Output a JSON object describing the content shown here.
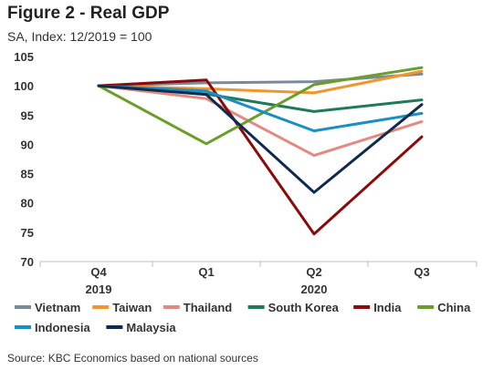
{
  "chart_data": {
    "type": "line",
    "title": "Figure 2 - Real GDP",
    "subtitle": "SA, Index: 12/2019 = 100",
    "categories": [
      {
        "period": "Q4",
        "year": "2019"
      },
      {
        "period": "Q1",
        "year": ""
      },
      {
        "period": "Q2",
        "year": "2020"
      },
      {
        "period": "Q3",
        "year": ""
      }
    ],
    "ylim": [
      70,
      105
    ],
    "yticks": [
      70,
      75,
      80,
      85,
      90,
      95,
      100,
      105
    ],
    "grid": false,
    "legend_position": "bottom",
    "series": [
      {
        "name": "Vietnam",
        "color": "#7a8a99",
        "values": [
          100,
          100.5,
          100.7,
          102
        ]
      },
      {
        "name": "Taiwan",
        "color": "#f0962a",
        "values": [
          100,
          99.5,
          98.8,
          102.5
        ]
      },
      {
        "name": "Thailand",
        "color": "#e38a80",
        "values": [
          100,
          97.8,
          88.1,
          93.9
        ]
      },
      {
        "name": "South Korea",
        "color": "#1f7a5c",
        "values": [
          100,
          98.6,
          95.6,
          97.6
        ]
      },
      {
        "name": "India",
        "color": "#8b0a0a",
        "values": [
          100,
          101,
          74.7,
          91.3
        ]
      },
      {
        "name": "China",
        "color": "#6a9e2a",
        "values": [
          100,
          90.1,
          100.2,
          103.1
        ]
      },
      {
        "name": "Indonesia",
        "color": "#1a8fc4",
        "values": [
          100,
          99.1,
          92.3,
          95.3
        ]
      },
      {
        "name": "Malaysia",
        "color": "#0f2a50",
        "values": [
          100,
          98.5,
          81.8,
          96.8
        ]
      }
    ],
    "source": "Source: KBC Economics based on national sources"
  }
}
